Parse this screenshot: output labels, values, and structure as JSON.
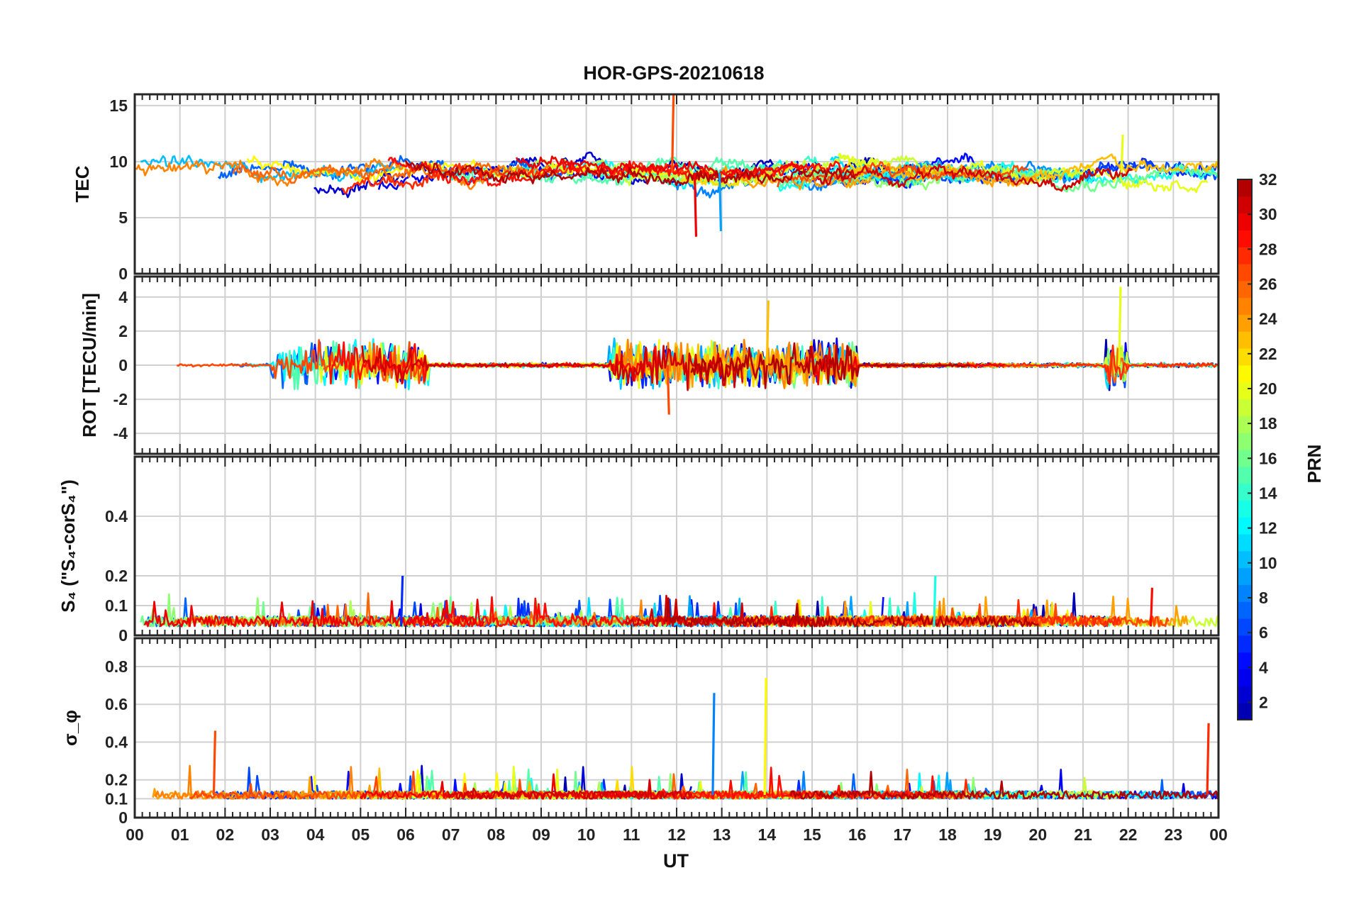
{
  "chart_data": [
    {
      "type": "line",
      "panel": "tec",
      "title": "HOR-GPS-20210618",
      "ylabel": "TEC",
      "ylim": [
        0,
        16
      ],
      "yticks": [
        0,
        5,
        10,
        15
      ],
      "ytick_labels": [
        "0",
        "5",
        "10",
        "15"
      ],
      "series_count": 32,
      "series_base_level": 9,
      "series_variation": 1.6,
      "notable_values": [
        {
          "prn": 27,
          "x_hours": 11.9,
          "y": 16
        },
        {
          "prn": 9,
          "x_hours": 12.95,
          "y": 3.8
        },
        {
          "prn": 30,
          "x_hours": 12.4,
          "y": 3.3
        },
        {
          "prn": 20,
          "x_hours": 21.85,
          "y": 12.4
        }
      ],
      "grid": true
    },
    {
      "type": "line",
      "panel": "rot",
      "ylabel": "ROT [TECU/min]",
      "ylim": [
        -5.2,
        5.2
      ],
      "yticks": [
        -4,
        -2,
        0,
        2,
        4
      ],
      "ytick_labels": [
        "-4",
        "-2",
        "0",
        "2",
        "4"
      ],
      "series_count": 32,
      "series_base_level": 0,
      "active_intervals_hours": [
        [
          3,
          6.5
        ],
        [
          10.5,
          16
        ],
        [
          21.5,
          22
        ]
      ],
      "notable_values": [
        {
          "prn": 20,
          "x_hours": 21.8,
          "y": 4.6
        },
        {
          "prn": 23,
          "x_hours": 14.0,
          "y": 3.8
        },
        {
          "prn": 27,
          "x_hours": 11.8,
          "y": -2.9
        }
      ],
      "grid": true
    },
    {
      "type": "line",
      "panel": "s4",
      "ylabel": "S₄ (\"S₄-corS₄\")",
      "ylim": [
        0,
        0.6
      ],
      "yticks": [
        0,
        0.1,
        0.2,
        0.4
      ],
      "ytick_labels": [
        "0",
        "0.1",
        "0.2",
        "0.4"
      ],
      "series_count": 32,
      "series_base_level": 0.03,
      "notable_values": [
        {
          "prn": 13,
          "x_hours": 17.7,
          "y": 0.2
        },
        {
          "prn": 5,
          "x_hours": 5.9,
          "y": 0.2
        },
        {
          "prn": 29,
          "x_hours": 22.5,
          "y": 0.16
        }
      ],
      "grid": true
    },
    {
      "type": "line",
      "panel": "sigma_phi",
      "ylabel": "σ_φ",
      "ylim": [
        0,
        0.95
      ],
      "yticks": [
        0,
        0.1,
        0.2,
        0.4,
        0.6,
        0.8
      ],
      "ytick_labels": [
        "0",
        "0.1",
        "0.2",
        "0.4",
        "0.6",
        "0.8"
      ],
      "series_count": 32,
      "series_base_level": 0.12,
      "xlabel": "UT",
      "xlim_hours": [
        0,
        24
      ],
      "xtick_labels": [
        "00",
        "01",
        "02",
        "03",
        "04",
        "05",
        "06",
        "07",
        "08",
        "09",
        "10",
        "11",
        "12",
        "13",
        "14",
        "15",
        "16",
        "17",
        "18",
        "19",
        "20",
        "21",
        "22",
        "23",
        "00"
      ],
      "notable_values": [
        {
          "prn": 21,
          "x_hours": 13.95,
          "y": 0.74
        },
        {
          "prn": 8,
          "x_hours": 12.8,
          "y": 0.66
        },
        {
          "prn": 28,
          "x_hours": 23.75,
          "y": 0.5
        },
        {
          "prn": 27,
          "x_hours": 1.75,
          "y": 0.46
        }
      ],
      "grid": true
    }
  ],
  "colorbar": {
    "label": "PRN",
    "range": [
      1,
      32
    ],
    "tick_labels": [
      "2",
      "4",
      "6",
      "8",
      "10",
      "12",
      "14",
      "16",
      "18",
      "20",
      "22",
      "24",
      "26",
      "28",
      "30",
      "32"
    ],
    "colormap": "jet"
  }
}
